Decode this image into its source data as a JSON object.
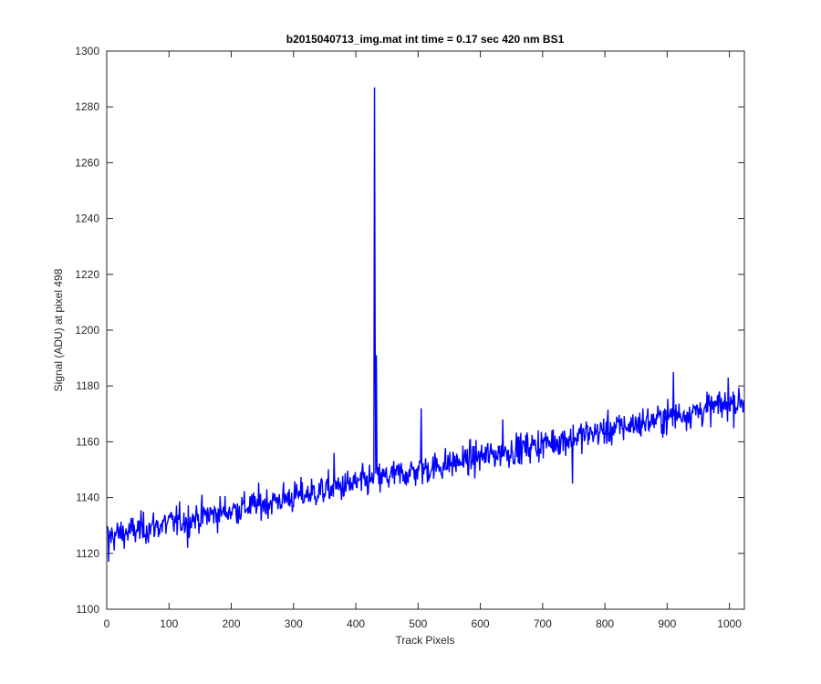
{
  "chart_data": {
    "type": "line",
    "title": "b2015040713_img.mat int time = 0.17 sec  420 nm BS1",
    "xlabel": "Track Pixels",
    "ylabel": "Signal (ADU) at pixel 498",
    "xlim": [
      0,
      1024
    ],
    "ylim": [
      1100,
      1300
    ],
    "xticks": [
      0,
      100,
      200,
      300,
      400,
      500,
      600,
      700,
      800,
      900,
      1000
    ],
    "yticks": [
      1100,
      1120,
      1140,
      1160,
      1180,
      1200,
      1220,
      1240,
      1260,
      1280,
      1300
    ],
    "grid": false,
    "series": [
      {
        "color": "#0000ff",
        "x_start": 1,
        "x_step": 1,
        "trend": {
          "y_at_x0": 1126,
          "slope": 0.0475
        },
        "noise_amplitude": 4,
        "outliers": [
          {
            "x": 430,
            "y": 1287
          },
          {
            "x": 431,
            "y": 1199
          },
          {
            "x": 433,
            "y": 1191
          },
          {
            "x": 3,
            "y": 1117
          },
          {
            "x": 130,
            "y": 1122
          },
          {
            "x": 365,
            "y": 1156
          },
          {
            "x": 505,
            "y": 1172
          },
          {
            "x": 636,
            "y": 1168
          },
          {
            "x": 748,
            "y": 1145
          },
          {
            "x": 910,
            "y": 1185
          },
          {
            "x": 998,
            "y": 1183
          }
        ]
      }
    ]
  }
}
